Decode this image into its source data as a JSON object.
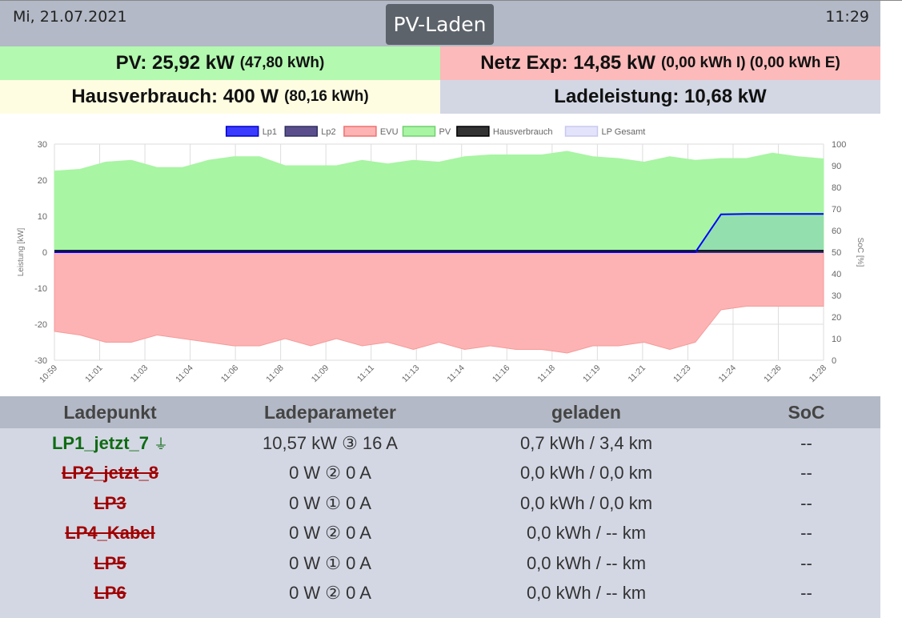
{
  "header": {
    "date": "Mi, 21.07.2021",
    "time": "11:29",
    "mode_label": "PV-Laden"
  },
  "summary": {
    "pv_main": "PV: 25,92 kW",
    "pv_sub": "(47,80 kWh)",
    "netz_main": "Netz Exp: 14,85 kW",
    "netz_sub": "(0,00 kWh I) (0,00 kWh E)",
    "haus_main": "Hausverbrauch: 400 W",
    "haus_sub": "(80,16 kWh)",
    "lade_main": "Ladeleistung: 10,68 kW"
  },
  "chart": {
    "legend": [
      "Lp1",
      "Lp2",
      "EVU",
      "PV",
      "Hausverbrauch",
      "LP Gesamt"
    ],
    "ylabel_left": "Leistung [kW]",
    "ylabel_right": "SoC [%]",
    "y_ticks_left": [
      "30",
      "20",
      "10",
      "0",
      "-10",
      "-20",
      "-30"
    ],
    "y_ticks_right": [
      "100",
      "90",
      "80",
      "70",
      "60",
      "50",
      "40",
      "30",
      "20",
      "10",
      "0"
    ],
    "x_ticks": [
      "10:59",
      "11:01",
      "11:03",
      "11:04",
      "11:06",
      "11:08",
      "11:09",
      "11:11",
      "11:13",
      "11:14",
      "11:16",
      "11:18",
      "11:19",
      "11:21",
      "11:23",
      "11:24",
      "11:26",
      "11:28"
    ]
  },
  "chart_data": {
    "type": "area",
    "xlabel": "",
    "ylabel": "Leistung [kW]",
    "y2label": "SoC [%]",
    "ylim": [
      -30,
      30
    ],
    "y2lim": [
      0,
      100
    ],
    "grid": true,
    "legend_position": "top",
    "x": [
      "10:59",
      "11:00",
      "11:01",
      "11:02",
      "11:03",
      "11:04",
      "11:05",
      "11:06",
      "11:07",
      "11:08",
      "11:09",
      "11:10",
      "11:11",
      "11:12",
      "11:13",
      "11:14",
      "11:15",
      "11:16",
      "11:17",
      "11:18",
      "11:19",
      "11:20",
      "11:21",
      "11:22",
      "11:23",
      "11:24",
      "11:25",
      "11:26",
      "11:27",
      "11:28",
      "11:29"
    ],
    "series": [
      {
        "name": "Lp1",
        "color": "#0000ff",
        "values": [
          0,
          0,
          0,
          0,
          0,
          0,
          0,
          0,
          0,
          0,
          0,
          0,
          0,
          0,
          0,
          0,
          0,
          0,
          0,
          0,
          0,
          0,
          0,
          0,
          0,
          0,
          10.5,
          10.6,
          10.6,
          10.6,
          10.6
        ]
      },
      {
        "name": "Lp2",
        "color": "#303088",
        "values": [
          0,
          0,
          0,
          0,
          0,
          0,
          0,
          0,
          0,
          0,
          0,
          0,
          0,
          0,
          0,
          0,
          0,
          0,
          0,
          0,
          0,
          0,
          0,
          0,
          0,
          0,
          0,
          0,
          0,
          0,
          0
        ]
      },
      {
        "name": "EVU",
        "color": "#ff7070",
        "values": [
          -22,
          -23,
          -25,
          -25,
          -23,
          -24,
          -25,
          -26,
          -26,
          -24,
          -26,
          -24,
          -26,
          -25,
          -27,
          -25,
          -27,
          -26,
          -27,
          -27,
          -28,
          -26,
          -26,
          -25,
          -27,
          -25,
          -16,
          -15,
          -15,
          -15,
          -15
        ]
      },
      {
        "name": "PV",
        "color": "#70ee70",
        "values": [
          22.5,
          23,
          25,
          25.5,
          23.5,
          23.5,
          25.5,
          26.5,
          26.5,
          24,
          24,
          24,
          25.5,
          24.5,
          25.5,
          25,
          26.5,
          27,
          27,
          27,
          28,
          26.5,
          26,
          25,
          26.5,
          25.5,
          26,
          26,
          27.5,
          26.5,
          25.9
        ]
      },
      {
        "name": "Hausverbrauch",
        "color": "#000000",
        "values": [
          0.4,
          0.4,
          0.4,
          0.4,
          0.4,
          0.4,
          0.4,
          0.4,
          0.4,
          0.4,
          0.4,
          0.4,
          0.4,
          0.4,
          0.4,
          0.4,
          0.4,
          0.4,
          0.4,
          0.4,
          0.4,
          0.4,
          0.4,
          0.4,
          0.4,
          0.4,
          0.4,
          0.4,
          0.4,
          0.4,
          0.4
        ]
      },
      {
        "name": "LP Gesamt",
        "color": "#9999ff",
        "values": [
          0,
          0,
          0,
          0,
          0,
          0,
          0,
          0,
          0,
          0,
          0,
          0,
          0,
          0,
          0,
          0,
          0,
          0,
          0,
          0,
          0,
          0,
          0,
          0,
          0,
          0,
          10.5,
          10.6,
          10.6,
          10.6,
          10.6
        ]
      }
    ]
  },
  "table": {
    "headers": [
      "Ladepunkt",
      "Ladeparameter",
      "geladen",
      "SoC"
    ],
    "rows": [
      {
        "name": "LP1_jetzt_7",
        "active": true,
        "param": "10,57 kW ③ 16 A",
        "geladen": "0,7 kWh / 3,4 km",
        "soc": "--"
      },
      {
        "name": "LP2_jetzt_8",
        "active": false,
        "param": "0 W ② 0 A",
        "geladen": "0,0 kWh / 0,0 km",
        "soc": "--"
      },
      {
        "name": "LP3",
        "active": false,
        "param": "0 W ① 0 A",
        "geladen": "0,0 kWh / 0,0 km",
        "soc": "--"
      },
      {
        "name": "LP4_Kabel",
        "active": false,
        "param": "0 W ② 0 A",
        "geladen": "0,0 kWh / -- km",
        "soc": "--"
      },
      {
        "name": "LP5",
        "active": false,
        "param": "0 W ① 0 A",
        "geladen": "0,0 kWh / -- km",
        "soc": "--"
      },
      {
        "name": "LP6",
        "active": false,
        "param": "0 W ② 0 A",
        "geladen": "0,0 kWh / -- km",
        "soc": "--"
      }
    ]
  }
}
